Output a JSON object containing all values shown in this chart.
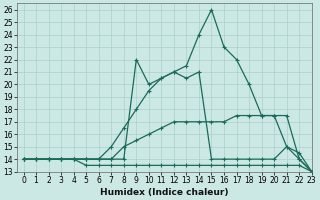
{
  "xlabel": "Humidex (Indice chaleur)",
  "background_color": "#cce8e4",
  "grid_color": "#aad0cc",
  "line_color": "#1a6b5a",
  "xlim": [
    -0.5,
    23
  ],
  "ylim": [
    13,
    26.5
  ],
  "xticks": [
    0,
    1,
    2,
    3,
    4,
    5,
    6,
    7,
    8,
    9,
    10,
    11,
    12,
    13,
    14,
    15,
    16,
    17,
    18,
    19,
    20,
    21,
    22,
    23
  ],
  "yticks": [
    13,
    14,
    15,
    16,
    17,
    18,
    19,
    20,
    21,
    22,
    23,
    24,
    25,
    26
  ],
  "series": [
    {
      "x": [
        0,
        1,
        2,
        3,
        4,
        5,
        6,
        7,
        8,
        9,
        10,
        11,
        12,
        13,
        14,
        15,
        16,
        17,
        18,
        19,
        20,
        21,
        22,
        23
      ],
      "y": [
        14,
        14,
        14,
        14,
        14,
        13.5,
        13.5,
        13.5,
        13.5,
        13.5,
        13.5,
        13.5,
        13.5,
        13.5,
        13.5,
        13.5,
        13.5,
        13.5,
        13.5,
        13.5,
        13.5,
        13.5,
        13.5,
        13
      ]
    },
    {
      "x": [
        0,
        1,
        2,
        3,
        4,
        5,
        6,
        7,
        8,
        9,
        10,
        11,
        12,
        13,
        14,
        15,
        16,
        17,
        18,
        19,
        20,
        21,
        22,
        23
      ],
      "y": [
        14,
        14,
        14,
        14,
        14,
        14,
        14,
        14,
        15,
        15.5,
        16,
        16.5,
        17,
        17,
        17,
        17,
        17,
        17.5,
        17.5,
        17.5,
        17.5,
        17.5,
        14,
        13
      ]
    },
    {
      "x": [
        0,
        1,
        2,
        3,
        4,
        5,
        6,
        7,
        8,
        9,
        10,
        11,
        12,
        13,
        14,
        15,
        16,
        17,
        18,
        19,
        20,
        21,
        22,
        23
      ],
      "y": [
        14,
        14,
        14,
        14,
        14,
        14,
        14,
        15,
        16.5,
        18,
        19.5,
        20.5,
        21,
        21.5,
        24,
        26,
        23,
        22,
        20,
        17.5,
        17.5,
        15,
        14.5,
        13
      ]
    },
    {
      "x": [
        0,
        1,
        2,
        3,
        4,
        5,
        6,
        7,
        8,
        9,
        10,
        11,
        12,
        13,
        14,
        15,
        16,
        17,
        18,
        19,
        20,
        21,
        22,
        23
      ],
      "y": [
        14,
        14,
        14,
        14,
        14,
        14,
        14,
        14,
        14,
        22,
        20,
        20.5,
        21,
        20.5,
        21,
        14,
        14,
        14,
        14,
        14,
        14,
        15,
        14,
        13
      ]
    }
  ]
}
